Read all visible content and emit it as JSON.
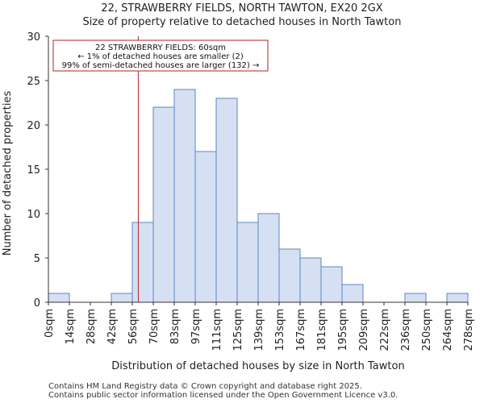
{
  "chart_data": {
    "type": "bar",
    "title_line1": "22, STRAWBERRY FIELDS, NORTH TAWTON, EX20 2GX",
    "title_line2": "Size of property relative to detached houses in North Tawton",
    "xlabel": "Distribution of detached houses by size in North Tawton",
    "ylabel": "Number of detached properties",
    "ylim": [
      0,
      30
    ],
    "yticks": [
      0,
      5,
      10,
      15,
      20,
      25,
      30
    ],
    "bin_edges": [
      0,
      14,
      28,
      42,
      56,
      70,
      83,
      97,
      111,
      125,
      139,
      153,
      167,
      181,
      195,
      209,
      222,
      236,
      250,
      264,
      278
    ],
    "tick_labels": [
      "0sqm",
      "14sqm",
      "28sqm",
      "42sqm",
      "56sqm",
      "70sqm",
      "83sqm",
      "97sqm",
      "111sqm",
      "125sqm",
      "139sqm",
      "153sqm",
      "167sqm",
      "181sqm",
      "195sqm",
      "209sqm",
      "222sqm",
      "236sqm",
      "250sqm",
      "264sqm",
      "278sqm"
    ],
    "values": [
      1,
      0,
      0,
      1,
      9,
      22,
      24,
      17,
      23,
      9,
      10,
      6,
      5,
      4,
      2,
      0,
      0,
      1,
      0,
      1
    ],
    "marker_value": 60,
    "annotation": [
      "22 STRAWBERRY FIELDS: 60sqm",
      "← 1% of detached houses are smaller (2)",
      "99% of semi-detached houses are larger (132) →"
    ],
    "colors": {
      "bar_fill": "#d6e0f3",
      "bar_edge": "#5b86c5",
      "marker": "#b22222",
      "axis": "#333333"
    }
  },
  "footer": {
    "line1": "Contains HM Land Registry data © Crown copyright and database right 2025.",
    "line2": "Contains public sector information licensed under the Open Government Licence v3.0."
  }
}
